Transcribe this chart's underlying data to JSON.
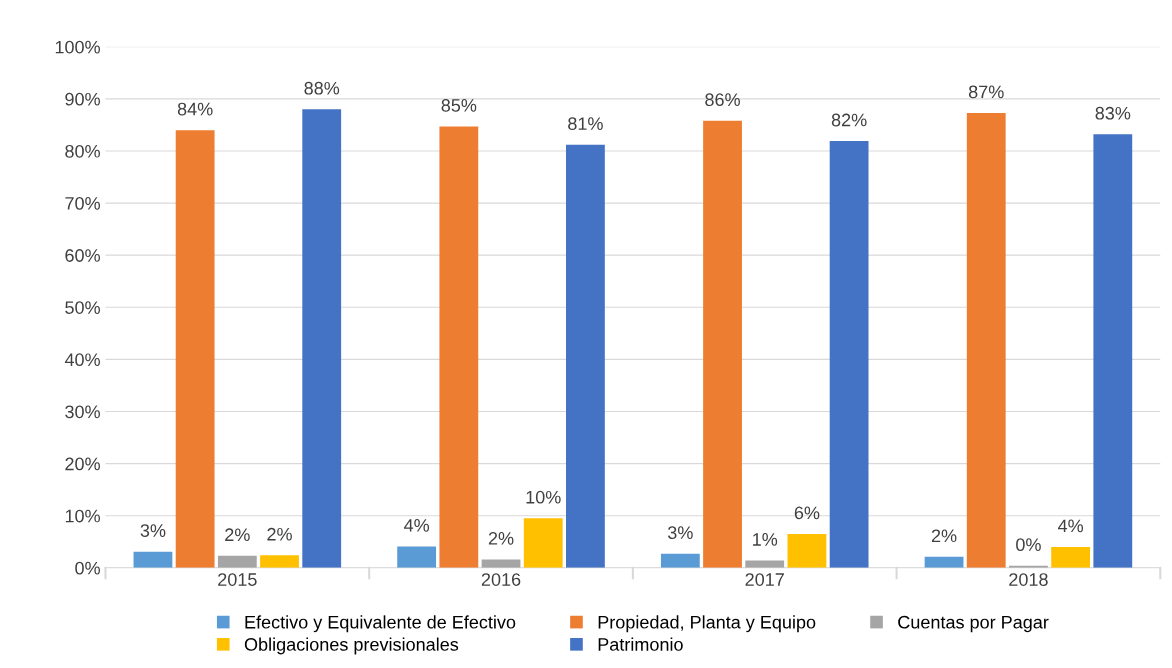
{
  "chart_data": {
    "type": "bar",
    "categories": [
      "2015",
      "2016",
      "2017",
      "2018"
    ],
    "series": [
      {
        "name": "Efectivo y Equivalente de Efectivo",
        "color": "#5b9bd5",
        "values": [
          3.1,
          4.1,
          2.7,
          2.1
        ],
        "value_labels": [
          "3%",
          "4%",
          "3%",
          "2%"
        ]
      },
      {
        "name": "Propiedad, Planta y Equipo",
        "color": "#ed7d31",
        "values": [
          84,
          84.7,
          85.8,
          87.3
        ],
        "value_labels": [
          "84%",
          "85%",
          "86%",
          "87%"
        ]
      },
      {
        "name": "Cuentas por Pagar",
        "color": "#a5a5a5",
        "values": [
          2.3,
          1.6,
          1.4,
          0.4
        ],
        "value_labels": [
          "2%",
          "2%",
          "1%",
          "0%"
        ]
      },
      {
        "name": "Obligaciones previsionales",
        "color": "#ffc000",
        "values": [
          2.4,
          9.5,
          6.5,
          4
        ],
        "value_labels": [
          "2%",
          "10%",
          "6%",
          "4%"
        ]
      },
      {
        "name": "Patrimonio",
        "color": "#4472c4",
        "values": [
          88,
          81.2,
          81.9,
          83.2
        ],
        "value_labels": [
          "88%",
          "81%",
          "82%",
          "83%"
        ]
      }
    ],
    "ylim": [
      0,
      100
    ],
    "yticks": [
      {
        "value": 0,
        "label": "0%"
      },
      {
        "value": 10,
        "label": "10%"
      },
      {
        "value": 20,
        "label": "20%"
      },
      {
        "value": 30,
        "label": "30%"
      },
      {
        "value": 40,
        "label": "40%"
      },
      {
        "value": 50,
        "label": "50%"
      },
      {
        "value": 60,
        "label": "60%"
      },
      {
        "value": 70,
        "label": "70%"
      },
      {
        "value": 80,
        "label": "80%"
      },
      {
        "value": 90,
        "label": "90%"
      },
      {
        "value": 100,
        "label": "100%"
      }
    ],
    "grid": "y",
    "legend": "bottom"
  }
}
